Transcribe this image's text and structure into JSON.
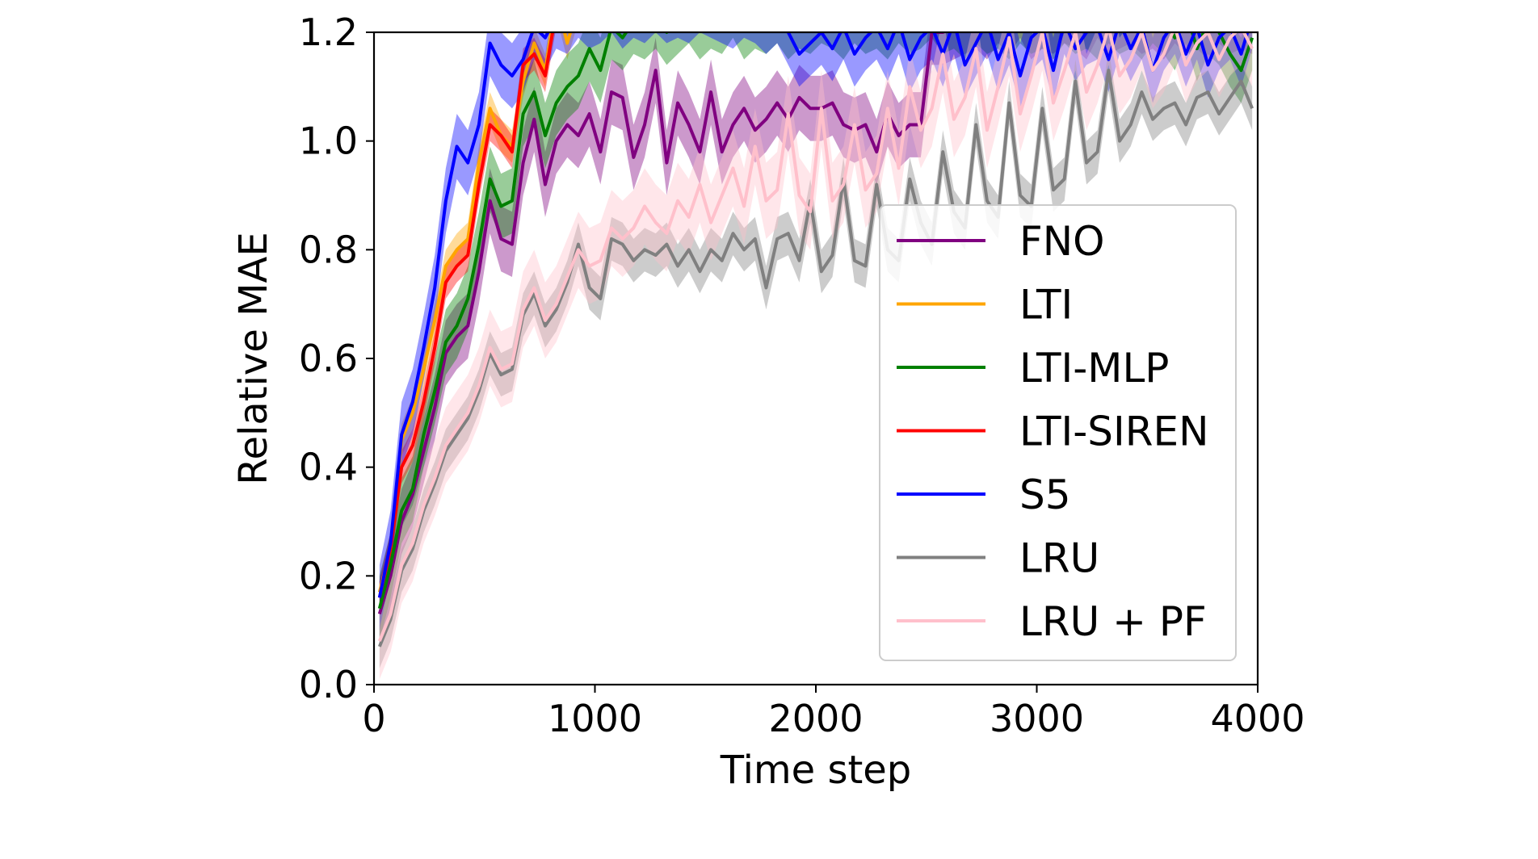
{
  "chart_data": {
    "type": "line",
    "title": "",
    "xlabel": "Time step",
    "ylabel": "Relative MAE",
    "xlim": [
      0,
      4000
    ],
    "ylim": [
      0,
      1.2
    ],
    "xticks": [
      0,
      1000,
      2000,
      3000,
      4000
    ],
    "yticks": [
      0.0,
      0.2,
      0.4,
      0.6,
      0.8,
      1.0,
      1.2
    ],
    "xtick_labels": [
      "0",
      "1000",
      "2000",
      "3000",
      "4000"
    ],
    "ytick_labels": [
      "0.0",
      "0.2",
      "0.4",
      "0.6",
      "0.8",
      "1.0",
      "1.2"
    ],
    "grid": false,
    "legend_position": "bottom-right",
    "shaded_bands": true,
    "series": [
      {
        "name": "FNO",
        "color": "#800080",
        "band": 0.06,
        "x": [
          25,
          75,
          125,
          175,
          225,
          275,
          325,
          375,
          425,
          475,
          525,
          575,
          625,
          675,
          725,
          775,
          825,
          875,
          925,
          975,
          1025,
          1075,
          1125,
          1175,
          1225,
          1275,
          1325,
          1375,
          1425,
          1475,
          1525,
          1575,
          1625,
          1675,
          1725,
          1775,
          1825,
          1875,
          1925,
          1975,
          2025,
          2075,
          2125,
          2175,
          2225,
          2275,
          2325,
          2375,
          2425,
          2475,
          2525,
          2575,
          2625,
          2675,
          2725,
          2775,
          2825,
          2875,
          2925,
          2975,
          3025,
          3075,
          3125,
          3175,
          3225,
          3275,
          3325,
          3375,
          3425,
          3475,
          3525,
          3575,
          3625,
          3675,
          3725,
          3775,
          3825,
          3875,
          3925,
          3975
        ],
        "y": [
          0.13,
          0.2,
          0.3,
          0.35,
          0.43,
          0.51,
          0.61,
          0.64,
          0.66,
          0.76,
          0.89,
          0.82,
          0.81,
          0.96,
          1.04,
          0.92,
          1.0,
          1.03,
          1.01,
          1.05,
          0.98,
          1.09,
          1.08,
          0.97,
          1.03,
          1.13,
          0.96,
          1.07,
          1.03,
          0.98,
          1.09,
          0.98,
          1.03,
          1.06,
          1.02,
          1.04,
          1.07,
          1.04,
          1.08,
          1.06,
          1.06,
          1.07,
          1.03,
          1.02,
          1.03,
          0.98,
          1.05,
          1.01,
          1.03,
          1.03,
          1.2,
          1.2,
          1.21,
          1.22,
          1.23,
          1.21,
          1.24,
          1.22,
          1.25,
          1.21,
          1.23,
          1.22,
          1.24,
          1.23,
          1.21,
          1.25,
          1.22,
          1.23,
          1.24,
          1.22,
          1.23,
          1.21,
          1.24,
          1.22,
          1.23,
          1.21,
          1.24,
          1.22,
          1.23,
          1.22
        ]
      },
      {
        "name": "LTI",
        "color": "#FFA500",
        "band": 0.03,
        "x": [
          25,
          75,
          125,
          175,
          225,
          275,
          325,
          375,
          425,
          475,
          525,
          575,
          625,
          675,
          725,
          775,
          825,
          875,
          925
        ],
        "y": [
          0.17,
          0.25,
          0.45,
          0.5,
          0.58,
          0.67,
          0.77,
          0.8,
          0.82,
          0.96,
          1.06,
          1.01,
          0.99,
          1.11,
          1.18,
          1.13,
          1.26,
          1.18,
          1.25
        ]
      },
      {
        "name": "LTI-MLP",
        "color": "#008000",
        "band": 0.06,
        "x": [
          25,
          75,
          125,
          175,
          225,
          275,
          325,
          375,
          425,
          475,
          525,
          575,
          625,
          675,
          725,
          775,
          825,
          875,
          925,
          975,
          1025,
          1075,
          1125,
          1175,
          1225,
          1275,
          1325,
          1375,
          1425,
          1475,
          1525,
          1575,
          1625,
          1675,
          1725,
          1775,
          1825,
          1875,
          1925,
          1975,
          2025,
          2075,
          2125,
          2175,
          2225,
          2275,
          2325,
          2375,
          2425,
          2475,
          2525,
          2575,
          2625,
          2675,
          2725,
          2775,
          2825,
          2875,
          2925,
          2975,
          3025,
          3075,
          3125,
          3175,
          3225,
          3275,
          3325,
          3375,
          3425,
          3475,
          3525,
          3575,
          3625,
          3675,
          3725,
          3775,
          3825,
          3875,
          3925,
          3975
        ],
        "y": [
          0.14,
          0.22,
          0.32,
          0.36,
          0.46,
          0.54,
          0.63,
          0.66,
          0.71,
          0.81,
          0.93,
          0.88,
          0.89,
          1.05,
          1.09,
          1.01,
          1.07,
          1.1,
          1.12,
          1.17,
          1.13,
          1.21,
          1.19,
          1.22,
          1.21,
          1.23,
          1.2,
          1.22,
          1.24,
          1.21,
          1.23,
          1.22,
          1.25,
          1.21,
          1.23,
          1.22,
          1.24,
          1.21,
          1.23,
          1.22,
          1.24,
          1.23,
          1.21,
          1.24,
          1.22,
          1.23,
          1.21,
          1.24,
          1.22,
          1.23,
          1.25,
          1.22,
          1.23,
          1.21,
          1.24,
          1.22,
          1.23,
          1.21,
          1.24,
          1.22,
          1.23,
          1.21,
          1.24,
          1.22,
          1.23,
          1.21,
          1.24,
          1.22,
          1.23,
          1.21,
          1.24,
          1.22,
          1.19,
          1.24,
          1.17,
          1.22,
          1.2,
          1.16,
          1.13,
          1.19
        ]
      },
      {
        "name": "LTI-SIREN",
        "color": "#FF0000",
        "band": 0.03,
        "x": [
          25,
          75,
          125,
          175,
          225,
          275,
          325,
          375,
          425,
          475,
          525,
          575,
          625,
          675,
          725,
          775,
          825
        ],
        "y": [
          0.16,
          0.25,
          0.4,
          0.44,
          0.52,
          0.62,
          0.74,
          0.77,
          0.79,
          0.92,
          1.03,
          1.01,
          0.98,
          1.14,
          1.16,
          1.12,
          1.24
        ]
      },
      {
        "name": "S5",
        "color": "#0000FF",
        "band": 0.06,
        "x": [
          25,
          75,
          125,
          175,
          225,
          275,
          325,
          375,
          425,
          475,
          525,
          575,
          625,
          675,
          725,
          775,
          825,
          875,
          925,
          975,
          1025,
          1075,
          1125,
          1175,
          1225,
          1275,
          1325,
          1375,
          1425,
          1475,
          1525,
          1575,
          1625,
          1675,
          1725,
          1775,
          1825,
          1875,
          1925,
          1975,
          2025,
          2075,
          2125,
          2175,
          2225,
          2275,
          2325,
          2375,
          2425,
          2475,
          2525,
          2575,
          2625,
          2675,
          2725,
          2775,
          2825,
          2875,
          2925,
          2975,
          3025,
          3075,
          3125,
          3175,
          3225,
          3275,
          3325,
          3375,
          3425,
          3475,
          3525,
          3575,
          3625,
          3675,
          3725,
          3775,
          3825,
          3875,
          3925,
          3975
        ],
        "y": [
          0.16,
          0.26,
          0.46,
          0.52,
          0.62,
          0.73,
          0.89,
          0.99,
          0.96,
          1.03,
          1.18,
          1.14,
          1.12,
          1.15,
          1.21,
          1.19,
          1.23,
          1.22,
          1.25,
          1.23,
          1.24,
          1.26,
          1.23,
          1.25,
          1.24,
          1.26,
          1.24,
          1.25,
          1.24,
          1.26,
          1.25,
          1.24,
          1.23,
          1.25,
          1.24,
          1.22,
          1.24,
          1.2,
          1.16,
          1.18,
          1.2,
          1.17,
          1.21,
          1.16,
          1.19,
          1.21,
          1.17,
          1.22,
          1.15,
          1.19,
          1.21,
          1.16,
          1.22,
          1.14,
          1.18,
          1.22,
          1.15,
          1.2,
          1.12,
          1.19,
          1.21,
          1.13,
          1.22,
          1.17,
          1.2,
          1.21,
          1.15,
          1.22,
          1.17,
          1.21,
          1.13,
          1.19,
          1.22,
          1.16,
          1.21,
          1.14,
          1.19,
          1.21,
          1.16,
          1.23
        ]
      },
      {
        "name": "LRU",
        "color": "#808080",
        "band": 0.04,
        "x": [
          25,
          75,
          125,
          175,
          225,
          275,
          325,
          375,
          425,
          475,
          525,
          575,
          625,
          675,
          725,
          775,
          825,
          875,
          925,
          975,
          1025,
          1075,
          1125,
          1175,
          1225,
          1275,
          1325,
          1375,
          1425,
          1475,
          1525,
          1575,
          1625,
          1675,
          1725,
          1775,
          1825,
          1875,
          1925,
          1975,
          2025,
          2075,
          2125,
          2175,
          2225,
          2275,
          2325,
          2375,
          2425,
          2475,
          2525,
          2575,
          2625,
          2675,
          2725,
          2775,
          2825,
          2875,
          2925,
          2975,
          3025,
          3075,
          3125,
          3175,
          3225,
          3275,
          3325,
          3375,
          3425,
          3475,
          3525,
          3575,
          3625,
          3675,
          3725,
          3775,
          3825,
          3875,
          3925,
          3975
        ],
        "y": [
          0.07,
          0.12,
          0.21,
          0.25,
          0.32,
          0.37,
          0.43,
          0.46,
          0.49,
          0.54,
          0.61,
          0.57,
          0.58,
          0.68,
          0.72,
          0.66,
          0.69,
          0.74,
          0.81,
          0.73,
          0.71,
          0.82,
          0.81,
          0.78,
          0.8,
          0.79,
          0.81,
          0.77,
          0.8,
          0.76,
          0.8,
          0.78,
          0.83,
          0.8,
          0.82,
          0.73,
          0.82,
          0.83,
          0.78,
          0.89,
          0.76,
          0.79,
          0.93,
          0.78,
          0.77,
          0.92,
          0.8,
          0.78,
          0.93,
          0.85,
          0.81,
          0.98,
          0.87,
          0.84,
          1.03,
          0.89,
          0.86,
          1.07,
          0.9,
          0.88,
          1.06,
          0.91,
          0.93,
          1.11,
          0.96,
          0.98,
          1.13,
          1.0,
          1.03,
          1.09,
          1.04,
          1.06,
          1.07,
          1.03,
          1.08,
          1.09,
          1.05,
          1.08,
          1.11,
          1.06
        ]
      },
      {
        "name": "LRU + PF",
        "color": "#FFC0CB",
        "band": 0.07,
        "x": [
          25,
          75,
          125,
          175,
          225,
          275,
          325,
          375,
          425,
          475,
          525,
          575,
          625,
          675,
          725,
          775,
          825,
          875,
          925,
          975,
          1025,
          1075,
          1125,
          1175,
          1225,
          1275,
          1325,
          1375,
          1425,
          1475,
          1525,
          1575,
          1625,
          1675,
          1725,
          1775,
          1825,
          1875,
          1925,
          1975,
          2025,
          2075,
          2125,
          2175,
          2225,
          2275,
          2325,
          2375,
          2425,
          2475,
          2525,
          2575,
          2625,
          2675,
          2725,
          2775,
          2825,
          2875,
          2925,
          2975,
          3025,
          3075,
          3125,
          3175,
          3225,
          3275,
          3325,
          3375,
          3425,
          3475,
          3525,
          3575,
          3625,
          3675,
          3725,
          3775,
          3825,
          3875,
          3925,
          3975
        ],
        "y": [
          0.08,
          0.13,
          0.22,
          0.26,
          0.33,
          0.38,
          0.44,
          0.47,
          0.5,
          0.55,
          0.62,
          0.58,
          0.59,
          0.69,
          0.73,
          0.67,
          0.7,
          0.75,
          0.8,
          0.77,
          0.78,
          0.84,
          0.82,
          0.84,
          0.88,
          0.85,
          0.83,
          0.89,
          0.86,
          0.92,
          0.85,
          0.9,
          0.95,
          0.88,
          0.99,
          0.89,
          0.91,
          1.05,
          0.9,
          0.87,
          1.06,
          0.89,
          0.92,
          1.03,
          0.91,
          0.94,
          1.06,
          0.95,
          1.1,
          1.02,
          1.06,
          1.16,
          1.04,
          1.08,
          1.17,
          1.02,
          1.1,
          1.19,
          1.05,
          1.12,
          1.2,
          1.07,
          1.13,
          1.2,
          1.09,
          1.14,
          1.21,
          1.12,
          1.15,
          1.2,
          1.13,
          1.16,
          1.21,
          1.14,
          1.18,
          1.2,
          1.15,
          1.19,
          1.21,
          1.17
        ]
      }
    ]
  }
}
